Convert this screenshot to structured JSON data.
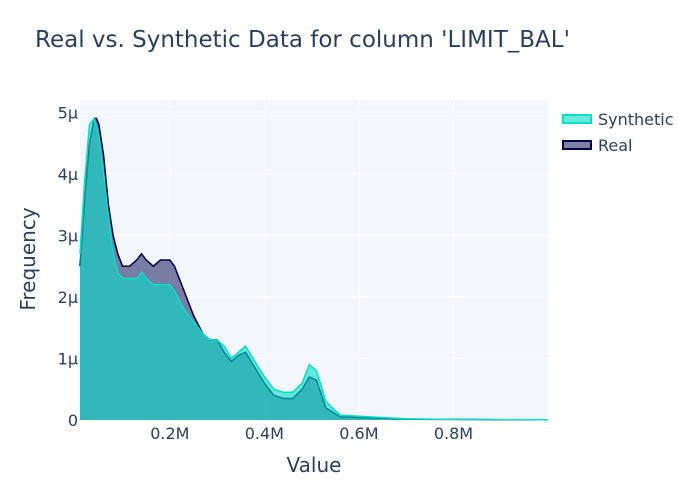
{
  "chart_data": {
    "type": "area",
    "title": "Real vs. Synthetic Data for column 'LIMIT_BAL'",
    "xlabel": "Value",
    "ylabel": "Frequency",
    "xlim": [
      10000,
      1000000
    ],
    "ylim": [
      0,
      5.2e-06
    ],
    "x_ticks": [
      {
        "value": 200000,
        "label": "0.2M"
      },
      {
        "value": 400000,
        "label": "0.4M"
      },
      {
        "value": 600000,
        "label": "0.6M"
      },
      {
        "value": 800000,
        "label": "0.8M"
      }
    ],
    "y_ticks": [
      {
        "value": 0,
        "label": "0"
      },
      {
        "value": 1e-06,
        "label": "1µ"
      },
      {
        "value": 2e-06,
        "label": "2µ"
      },
      {
        "value": 3e-06,
        "label": "3µ"
      },
      {
        "value": 4e-06,
        "label": "4µ"
      },
      {
        "value": 5e-06,
        "label": "5µ"
      }
    ],
    "grid": true,
    "legend_position": "top-right",
    "series": [
      {
        "name": "Real",
        "color": "#01014b",
        "fill": "rgba(1,1,75,0.5)",
        "points": [
          [
            10000,
            2.5e-06
          ],
          [
            20000,
            3.6e-06
          ],
          [
            30000,
            4.5e-06
          ],
          [
            40000,
            4.9e-06
          ],
          [
            45000,
            4.9e-06
          ],
          [
            50000,
            4.8e-06
          ],
          [
            60000,
            4.3e-06
          ],
          [
            70000,
            3.5e-06
          ],
          [
            80000,
            3e-06
          ],
          [
            90000,
            2.7e-06
          ],
          [
            100000,
            2.5e-06
          ],
          [
            115000,
            2.5e-06
          ],
          [
            130000,
            2.6e-06
          ],
          [
            140000,
            2.7e-06
          ],
          [
            150000,
            2.6e-06
          ],
          [
            165000,
            2.5e-06
          ],
          [
            180000,
            2.6e-06
          ],
          [
            200000,
            2.6e-06
          ],
          [
            210000,
            2.5e-06
          ],
          [
            230000,
            2.1e-06
          ],
          [
            250000,
            1.7e-06
          ],
          [
            270000,
            1.4e-06
          ],
          [
            285000,
            1.3e-06
          ],
          [
            300000,
            1.3e-06
          ],
          [
            315000,
            1.1e-06
          ],
          [
            330000,
            9.5e-07
          ],
          [
            345000,
            1.05e-06
          ],
          [
            360000,
            1.1e-06
          ],
          [
            380000,
            8.5e-07
          ],
          [
            400000,
            6e-07
          ],
          [
            420000,
            4e-07
          ],
          [
            440000,
            3.5e-07
          ],
          [
            460000,
            3.5e-07
          ],
          [
            480000,
            5e-07
          ],
          [
            495000,
            7e-07
          ],
          [
            510000,
            6.5e-07
          ],
          [
            530000,
            2e-07
          ],
          [
            560000,
            5e-08
          ],
          [
            600000,
            4e-08
          ],
          [
            650000,
            3e-08
          ],
          [
            700000,
            1.5e-08
          ],
          [
            750000,
            1e-08
          ],
          [
            800000,
            1e-08
          ],
          [
            900000,
            5e-09
          ],
          [
            1000000,
            3e-09
          ]
        ]
      },
      {
        "name": "Synthetic",
        "color": "#01e0c9",
        "fill": "rgba(1,224,201,0.6)",
        "points": [
          [
            10000,
            2.7e-06
          ],
          [
            20000,
            3.9e-06
          ],
          [
            30000,
            4.8e-06
          ],
          [
            40000,
            4.9e-06
          ],
          [
            50000,
            4.6e-06
          ],
          [
            60000,
            4e-06
          ],
          [
            70000,
            3.3e-06
          ],
          [
            80000,
            2.7e-06
          ],
          [
            90000,
            2.4e-06
          ],
          [
            100000,
            2.3e-06
          ],
          [
            115000,
            2.3e-06
          ],
          [
            130000,
            2.3e-06
          ],
          [
            140000,
            2.4e-06
          ],
          [
            150000,
            2.3e-06
          ],
          [
            165000,
            2.2e-06
          ],
          [
            180000,
            2.2e-06
          ],
          [
            200000,
            2.2e-06
          ],
          [
            210000,
            2.1e-06
          ],
          [
            230000,
            1.8e-06
          ],
          [
            250000,
            1.6e-06
          ],
          [
            270000,
            1.4e-06
          ],
          [
            285000,
            1.3e-06
          ],
          [
            300000,
            1.3e-06
          ],
          [
            315000,
            1.2e-06
          ],
          [
            330000,
            1e-06
          ],
          [
            345000,
            1.1e-06
          ],
          [
            360000,
            1.2e-06
          ],
          [
            380000,
            9.5e-07
          ],
          [
            400000,
            7e-07
          ],
          [
            420000,
            5e-07
          ],
          [
            440000,
            4.5e-07
          ],
          [
            460000,
            4.5e-07
          ],
          [
            480000,
            6e-07
          ],
          [
            495000,
            9e-07
          ],
          [
            510000,
            8e-07
          ],
          [
            530000,
            3e-07
          ],
          [
            560000,
            8e-08
          ],
          [
            600000,
            6e-08
          ],
          [
            650000,
            4e-08
          ],
          [
            700000,
            2e-08
          ],
          [
            750000,
            1.5e-08
          ],
          [
            800000,
            1e-08
          ],
          [
            900000,
            6e-09
          ],
          [
            1000000,
            4e-09
          ]
        ]
      }
    ]
  }
}
